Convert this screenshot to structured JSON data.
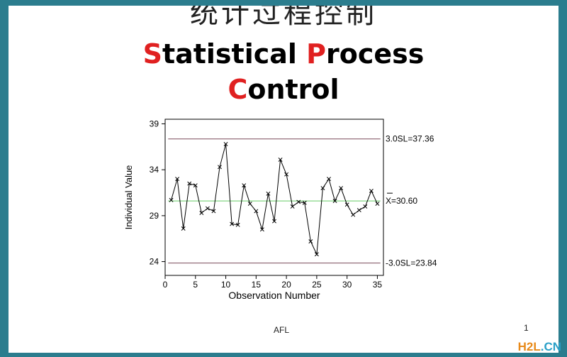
{
  "chinese_title": "统计过程控制",
  "title": {
    "line1": [
      {
        "cap": "S",
        "rest": "tatistical"
      },
      {
        "cap": "P",
        "rest": "rocess"
      }
    ],
    "line2": [
      {
        "cap": "C",
        "rest": "ontrol"
      }
    ]
  },
  "footer": {
    "left": "AFL",
    "right": "1"
  },
  "watermark": {
    "main": "H2L",
    "suffix": ".CN"
  },
  "colors": {
    "frame": "#2b7d8e",
    "title_accent": "#e02020",
    "limit_line": "#7a4a5a",
    "center_line": "#66cc66",
    "series": "#000000"
  },
  "chart_data": {
    "type": "line",
    "xlabel": "Observation Number",
    "ylabel": "Individual Value",
    "xlim": [
      0,
      36
    ],
    "ylim": [
      22.5,
      39.5
    ],
    "xticks": [
      0,
      5,
      10,
      15,
      20,
      25,
      30,
      35
    ],
    "yticks": [
      24,
      29,
      34,
      39
    ],
    "x": [
      1,
      2,
      3,
      4,
      5,
      6,
      7,
      8,
      9,
      10,
      11,
      12,
      13,
      14,
      15,
      16,
      17,
      18,
      19,
      20,
      21,
      22,
      23,
      24,
      25,
      26,
      27,
      28,
      29,
      30,
      31,
      32,
      33,
      34,
      35
    ],
    "values": [
      30.7,
      33.0,
      27.6,
      32.5,
      32.3,
      29.3,
      29.8,
      29.5,
      34.3,
      36.8,
      28.1,
      28.0,
      32.3,
      30.3,
      29.5,
      27.5,
      31.4,
      28.4,
      35.1,
      33.5,
      30.0,
      30.5,
      30.4,
      26.2,
      24.8,
      32.0,
      33.0,
      30.6,
      32.0,
      30.2,
      29.1,
      29.6,
      30.0,
      31.7,
      30.3
    ],
    "limits": [
      {
        "label": "3.0SL=37.36",
        "value": 37.36,
        "kind": "upper"
      },
      {
        "label": "X=30.60",
        "value": 30.6,
        "kind": "center"
      },
      {
        "label": "-3.0SL=23.84",
        "value": 23.84,
        "kind": "lower"
      }
    ]
  }
}
